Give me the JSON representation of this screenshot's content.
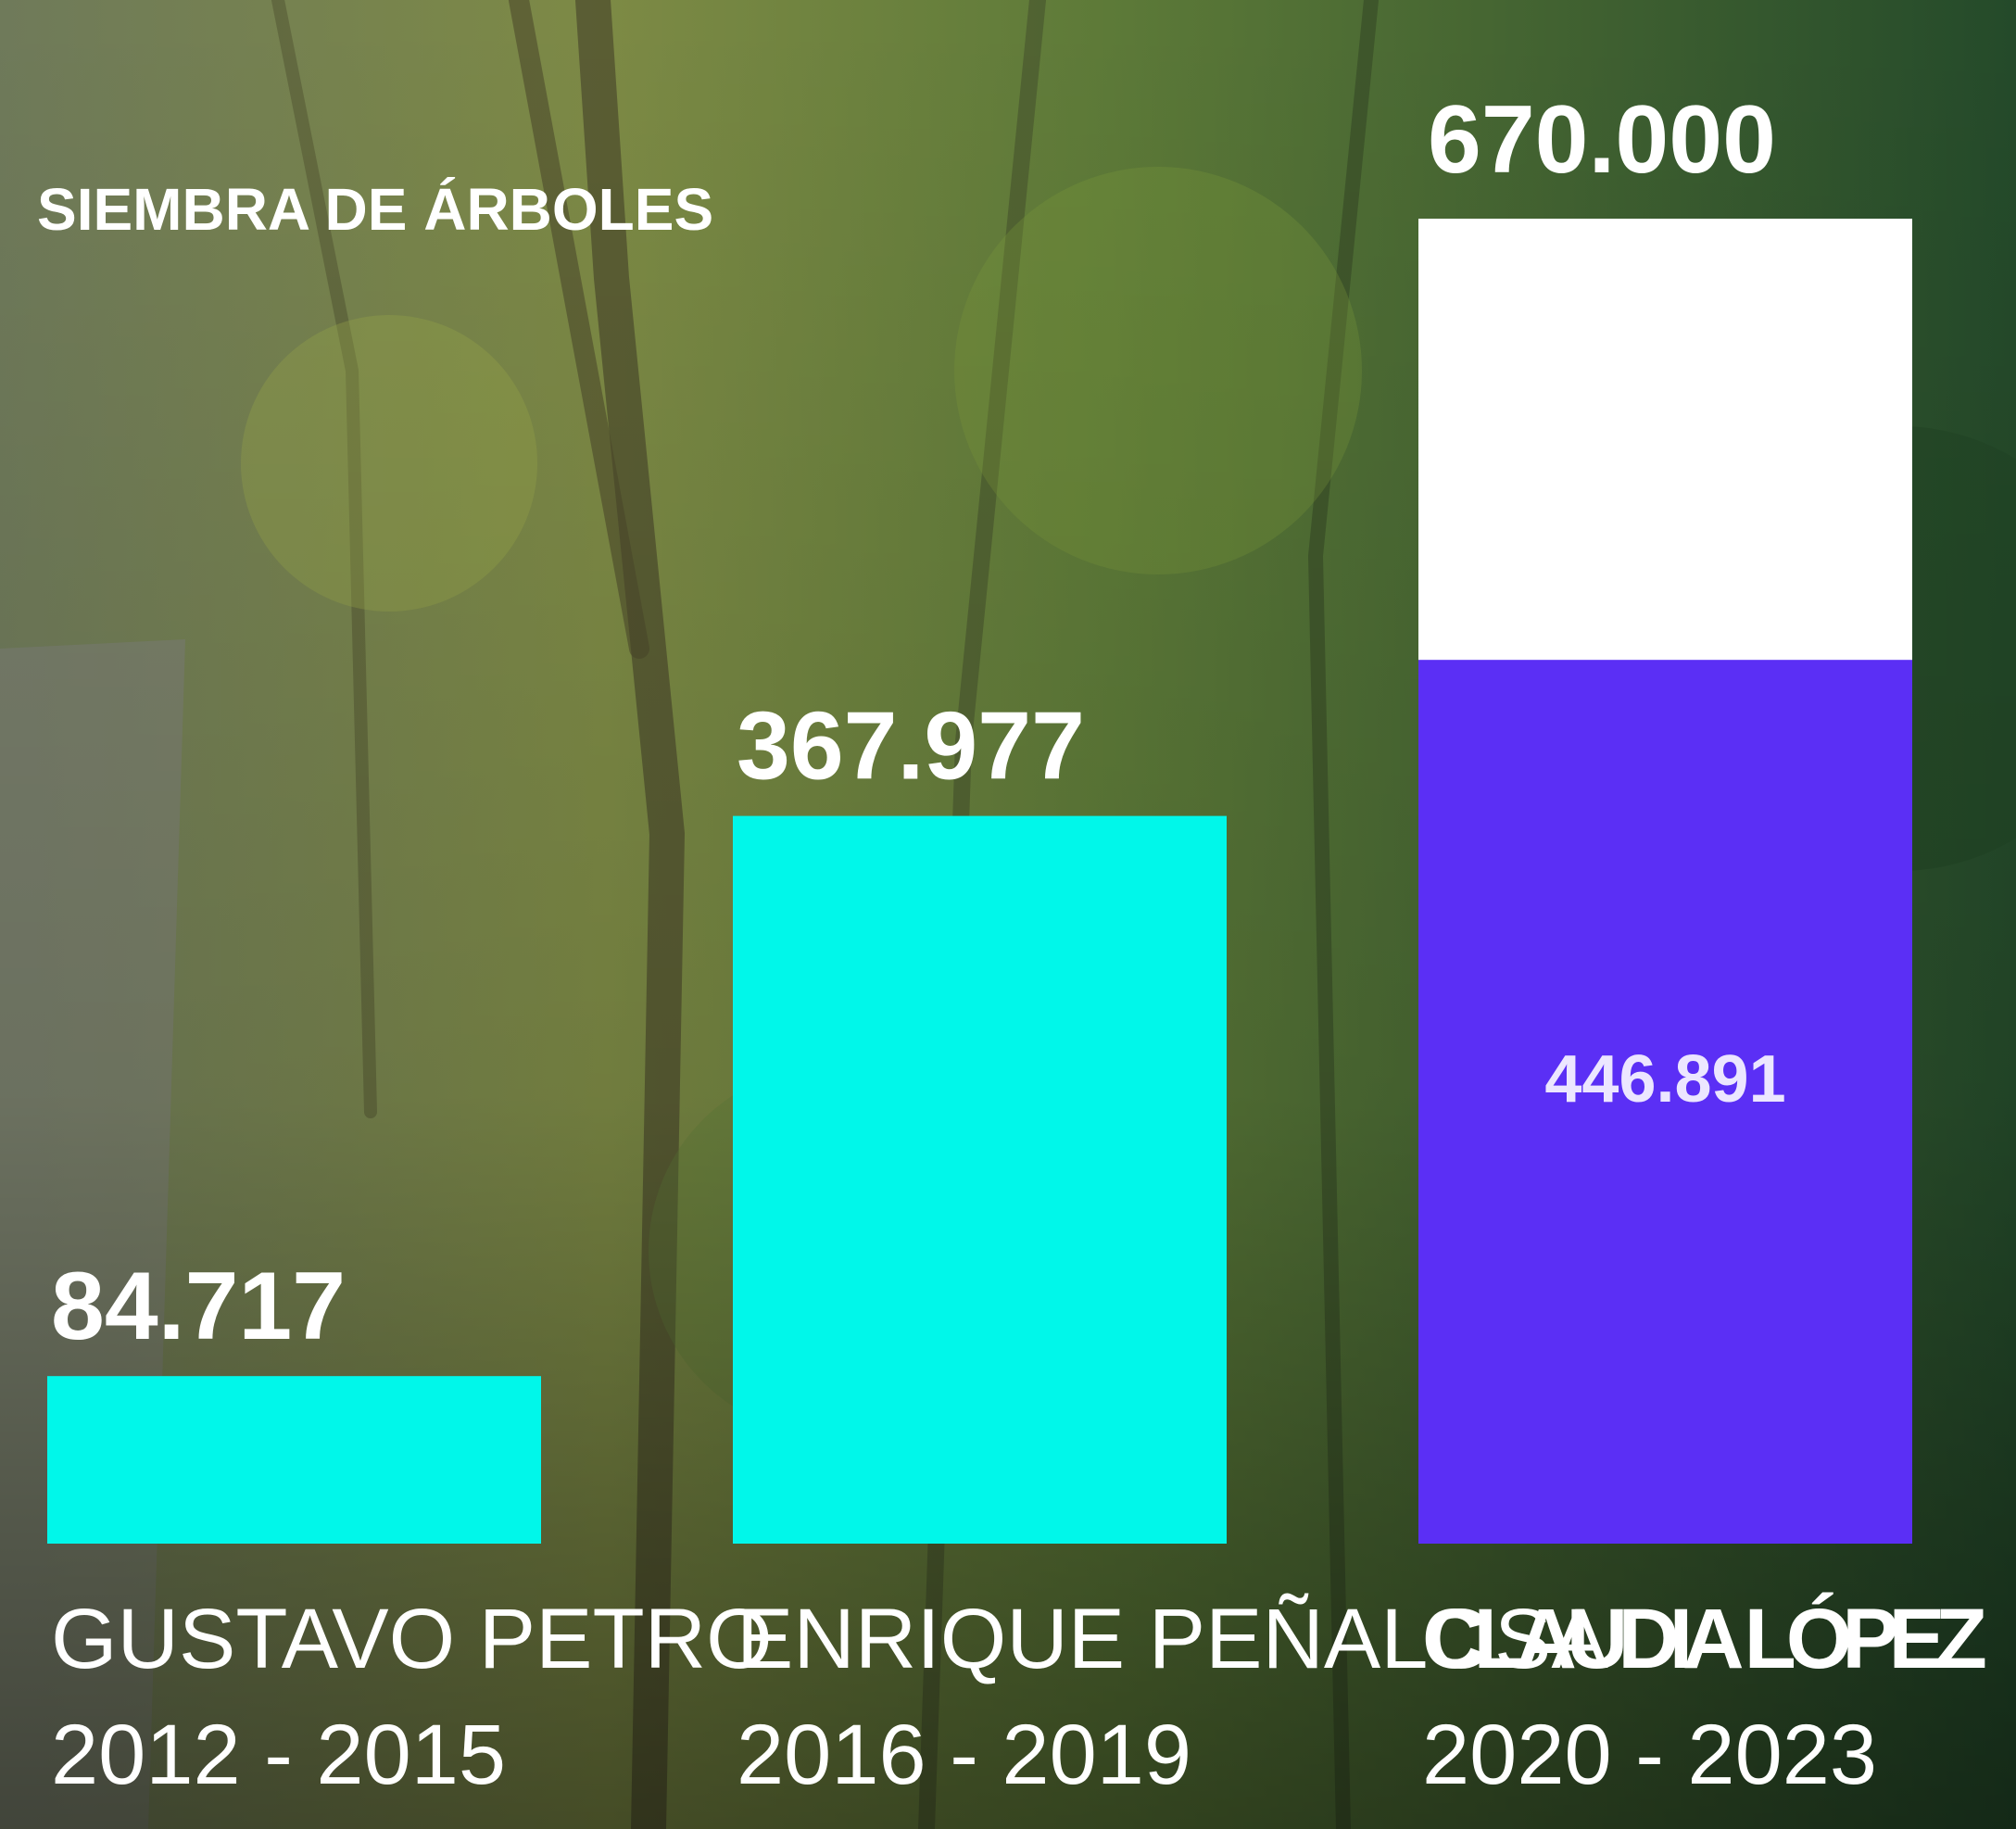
{
  "chart_data": {
    "type": "bar",
    "title": "SIEMBRA DE ÁRBOLES",
    "categories": [
      "GUSTAVO PETRO",
      "ENRIQUE PEÑALOSA",
      "CLAUDIA LÓPEZ"
    ],
    "periods": [
      "2012 - 2015",
      "2016 - 2019",
      "2020 - 2023"
    ],
    "values": [
      84717,
      367977,
      446891
    ],
    "value_labels": [
      "84.717",
      "367.977",
      "446.891"
    ],
    "colors": [
      "#00f7ea",
      "#00f7ea",
      "#5b2ff5"
    ],
    "targets": [
      null,
      null,
      670000
    ],
    "target_labels": [
      null,
      null,
      "670.000"
    ],
    "target_color": "#ffffff",
    "ylim": [
      0,
      670000
    ]
  }
}
